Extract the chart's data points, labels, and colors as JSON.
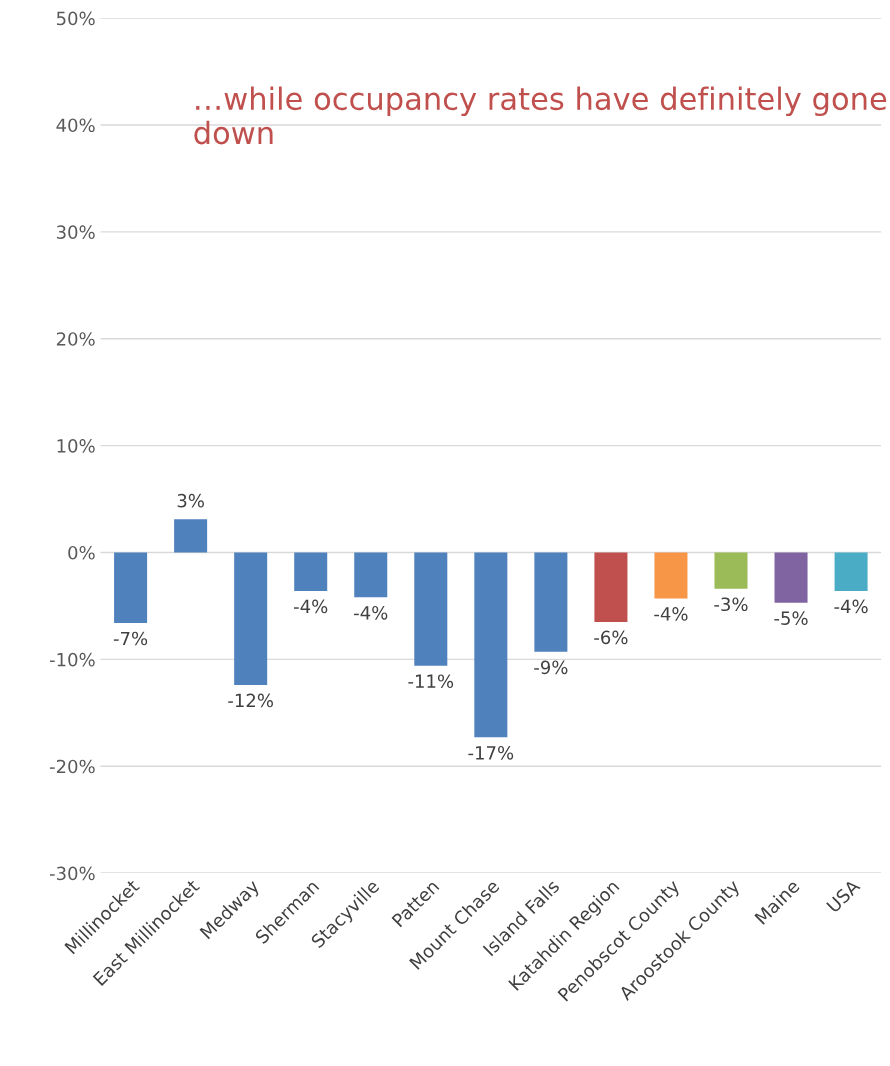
{
  "chart_data": {
    "type": "bar",
    "categories": [
      "Millinocket",
      "East Millinocket",
      "Medway",
      "Sherman",
      "Stacyville",
      "Patten",
      "Mount Chase",
      "Island Falls",
      "Katahdin Region",
      "Penobscot County",
      "Aroostook County",
      "Maine",
      "USA"
    ],
    "values": [
      -6.6,
      3.1,
      -12.4,
      -3.6,
      -4.2,
      -10.6,
      -17.3,
      -9.3,
      -6.5,
      -4.3,
      -3.4,
      -4.7,
      -3.6
    ],
    "value_labels": [
      "-7%",
      "3%",
      "-12%",
      "-4%",
      "-4%",
      "-11%",
      "-17%",
      "-9%",
      "-6%",
      "-4%",
      "-3%",
      "-5%",
      "-4%"
    ],
    "colors": [
      "#4f81bd",
      "#4f81bd",
      "#4f81bd",
      "#4f81bd",
      "#4f81bd",
      "#4f81bd",
      "#4f81bd",
      "#4f81bd",
      "#c0504d",
      "#f79646",
      "#9bbb59",
      "#8064a2",
      "#4bacc6"
    ],
    "ylim": [
      -30,
      50
    ],
    "yticks": [
      {
        "value": -30,
        "label": "-30%"
      },
      {
        "value": -20,
        "label": "-20%"
      },
      {
        "value": -10,
        "label": "-10%"
      },
      {
        "value": 0,
        "label": "0%"
      },
      {
        "value": 10,
        "label": "10%"
      },
      {
        "value": 20,
        "label": "20%"
      },
      {
        "value": 30,
        "label": "30%"
      },
      {
        "value": 40,
        "label": "40%"
      },
      {
        "value": 50,
        "label": "50%"
      }
    ],
    "grid": "y",
    "annotations": [
      "…while occupancy rates have definitely gone down"
    ]
  }
}
